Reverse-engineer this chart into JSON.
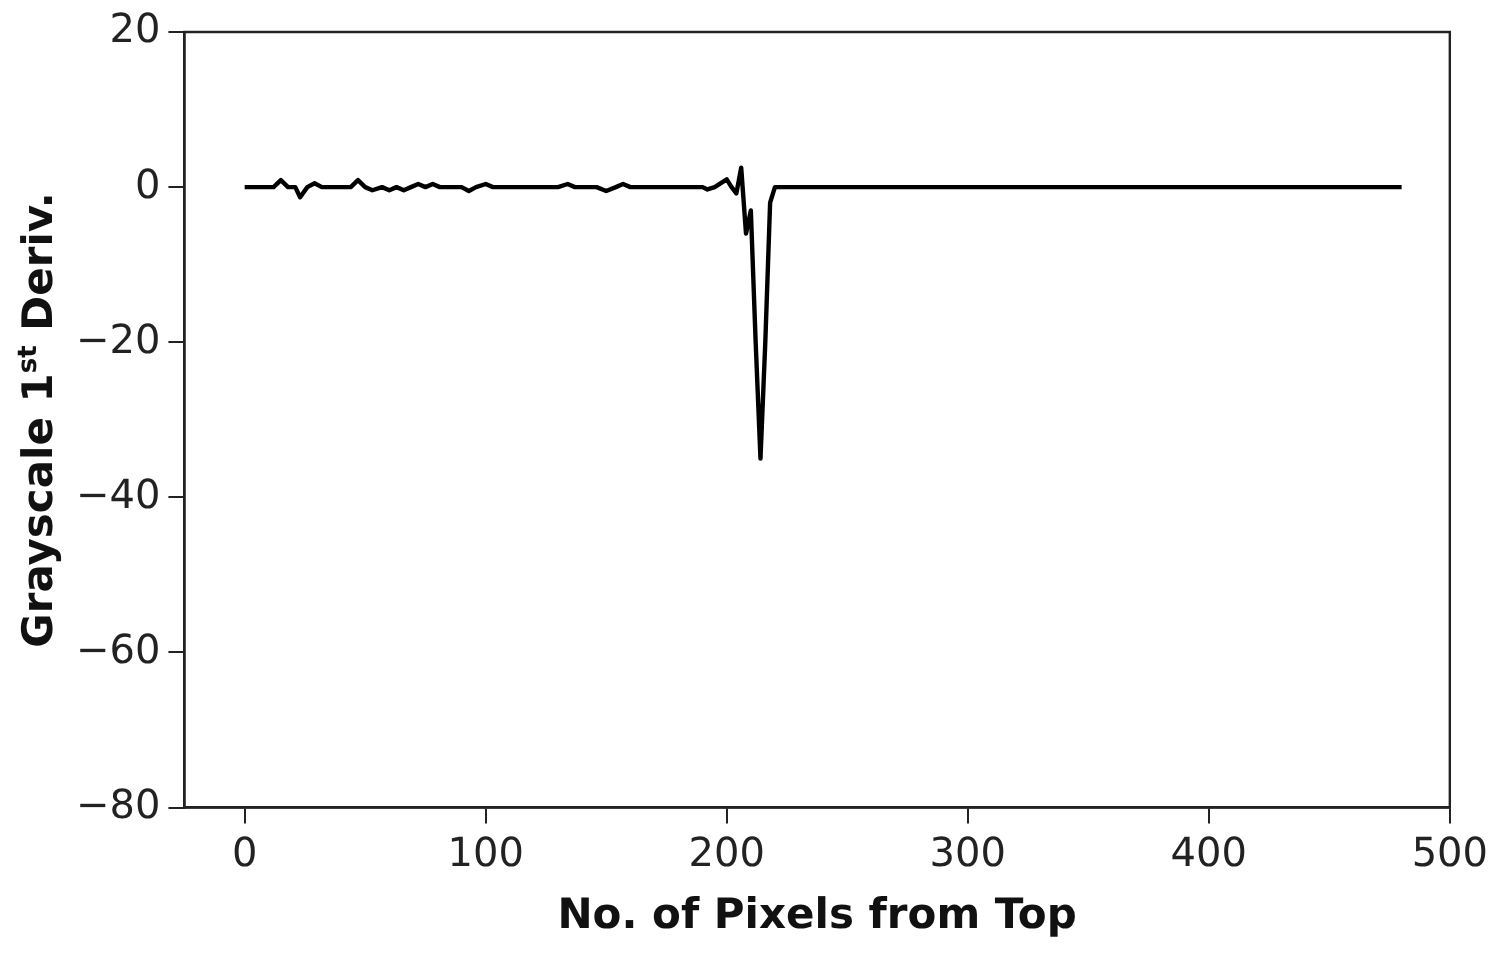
{
  "chart_data": {
    "type": "line",
    "xlabel": "No. of Pixels from Top",
    "ylabel": "Grayscale 1$^{st}$ Deriv.",
    "x": [
      0,
      12,
      15,
      18,
      21,
      23,
      26,
      29,
      32,
      44,
      47,
      50,
      53,
      57,
      60,
      63,
      66,
      69,
      72,
      75,
      78,
      81,
      90,
      93,
      96,
      100,
      103,
      106,
      130,
      134,
      137,
      146,
      150,
      154,
      157,
      160,
      163,
      190,
      192,
      195,
      200,
      202,
      204,
      206,
      208,
      210,
      212,
      214,
      216,
      218,
      220,
      222,
      224,
      480
    ],
    "values": [
      0,
      0,
      0.9,
      0,
      0,
      -1.3,
      0,
      0.5,
      0,
      0,
      0.9,
      0,
      -0.4,
      0,
      -0.4,
      0,
      -0.4,
      0,
      0.4,
      0,
      0.4,
      0,
      0,
      -0.5,
      0,
      0.4,
      0,
      0,
      0,
      0.4,
      0,
      0,
      -0.5,
      0,
      0.4,
      0,
      0,
      0,
      -0.3,
      0,
      1,
      0,
      -0.8,
      2.5,
      -6,
      -3,
      -20,
      -35,
      -20,
      -2,
      0,
      0,
      0,
      0
    ],
    "color": "#000000",
    "xlim": [
      -25,
      500
    ],
    "xticks": [
      0,
      100,
      200,
      300,
      400,
      500
    ],
    "ylim": [
      -80,
      20
    ],
    "yticks": [
      -80,
      -60,
      -40,
      -20,
      0,
      20
    ],
    "grid": false,
    "legend": false,
    "marker": "none",
    "line_style": "solid"
  }
}
